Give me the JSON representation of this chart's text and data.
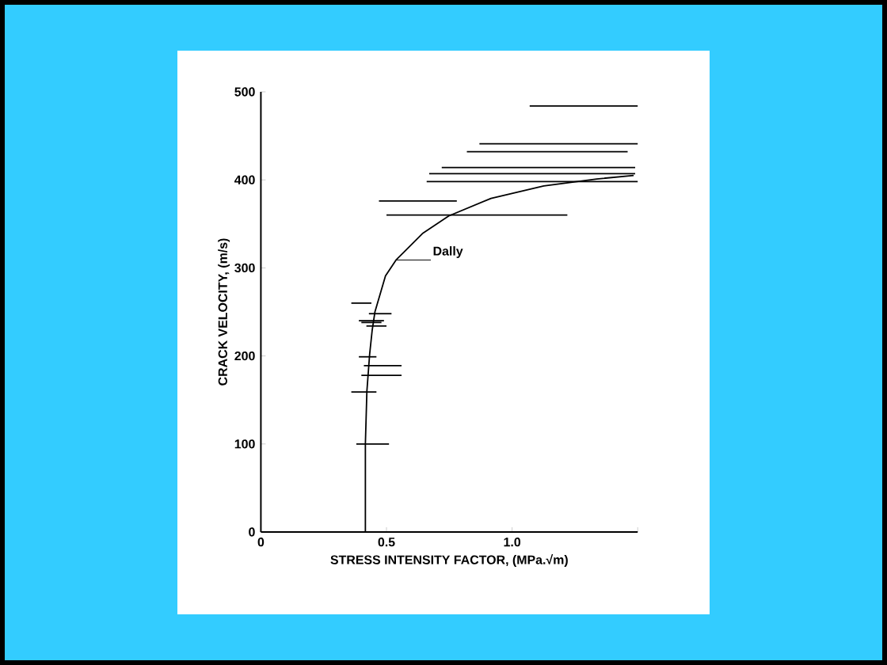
{
  "chart_data": {
    "type": "line",
    "xlabel": "STRESS INTENSITY FACTOR, (MPa.√m)",
    "ylabel": "CRACK VELOCITY, (m/s)",
    "xlim": [
      0,
      1.5
    ],
    "ylim": [
      0,
      500
    ],
    "xticks": [
      0,
      0.5,
      {
        "value": 1.0,
        "label": "1.0"
      },
      {
        "value": 1.5,
        "label": null
      }
    ],
    "yticks": [
      0,
      100,
      200,
      300,
      400,
      500
    ],
    "series": [
      {
        "color": "#000000",
        "x": [
          1.07,
          1.5
        ],
        "values": [
          484,
          484
        ]
      },
      {
        "color": "#000000",
        "x": [
          0.87,
          1.5
        ],
        "values": [
          441,
          441
        ]
      },
      {
        "color": "#000000",
        "x": [
          0.82,
          1.46
        ],
        "values": [
          432,
          432
        ]
      },
      {
        "color": "#000000",
        "x": [
          0.72,
          1.49
        ],
        "values": [
          414,
          414
        ]
      },
      {
        "color": "#000000",
        "x": [
          0.67,
          1.49
        ],
        "values": [
          407,
          407
        ]
      },
      {
        "color": "#000000",
        "x": [
          0.66,
          1.5
        ],
        "values": [
          398,
          398
        ]
      },
      {
        "color": "#000000",
        "x": [
          0.47,
          0.78
        ],
        "values": [
          376,
          376
        ]
      },
      {
        "color": "#000000",
        "x": [
          0.5,
          1.22
        ],
        "values": [
          360,
          360
        ]
      },
      {
        "color": "#000000",
        "x": [
          0.36,
          0.44
        ],
        "values": [
          260,
          260
        ]
      },
      {
        "color": "#000000",
        "x": [
          0.43,
          0.52
        ],
        "values": [
          248,
          248
        ]
      },
      {
        "color": "#000000",
        "x": [
          0.39,
          0.49
        ],
        "values": [
          240,
          240
        ]
      },
      {
        "color": "#000000",
        "x": [
          0.4,
          0.48
        ],
        "values": [
          238,
          238
        ]
      },
      {
        "color": "#000000",
        "x": [
          0.42,
          0.5
        ],
        "values": [
          234,
          234
        ]
      },
      {
        "color": "#000000",
        "x": [
          0.39,
          0.46
        ],
        "values": [
          199,
          199
        ]
      },
      {
        "color": "#000000",
        "x": [
          0.41,
          0.56
        ],
        "values": [
          189,
          189
        ]
      },
      {
        "color": "#000000",
        "x": [
          0.4,
          0.56
        ],
        "values": [
          178,
          178
        ]
      },
      {
        "color": "#000000",
        "x": [
          0.36,
          0.46
        ],
        "values": [
          159,
          159
        ]
      },
      {
        "color": "#000000",
        "x": [
          0.38,
          0.51
        ],
        "values": [
          100,
          100
        ]
      },
      {
        "color": "#000000",
        "x": [
          0.416,
          0.416,
          0.422,
          0.433,
          0.443,
          0.454,
          0.496,
          0.538,
          0.643,
          0.748,
          0.916,
          1.126,
          1.337,
          1.484
        ],
        "values": [
          0,
          100,
          160,
          202,
          229,
          250,
          291,
          309,
          339,
          359,
          379,
          393,
          401,
          405
        ]
      }
    ],
    "annotations": [
      {
        "text": "Dally",
        "x": 0.538,
        "y": 309
      }
    ]
  }
}
